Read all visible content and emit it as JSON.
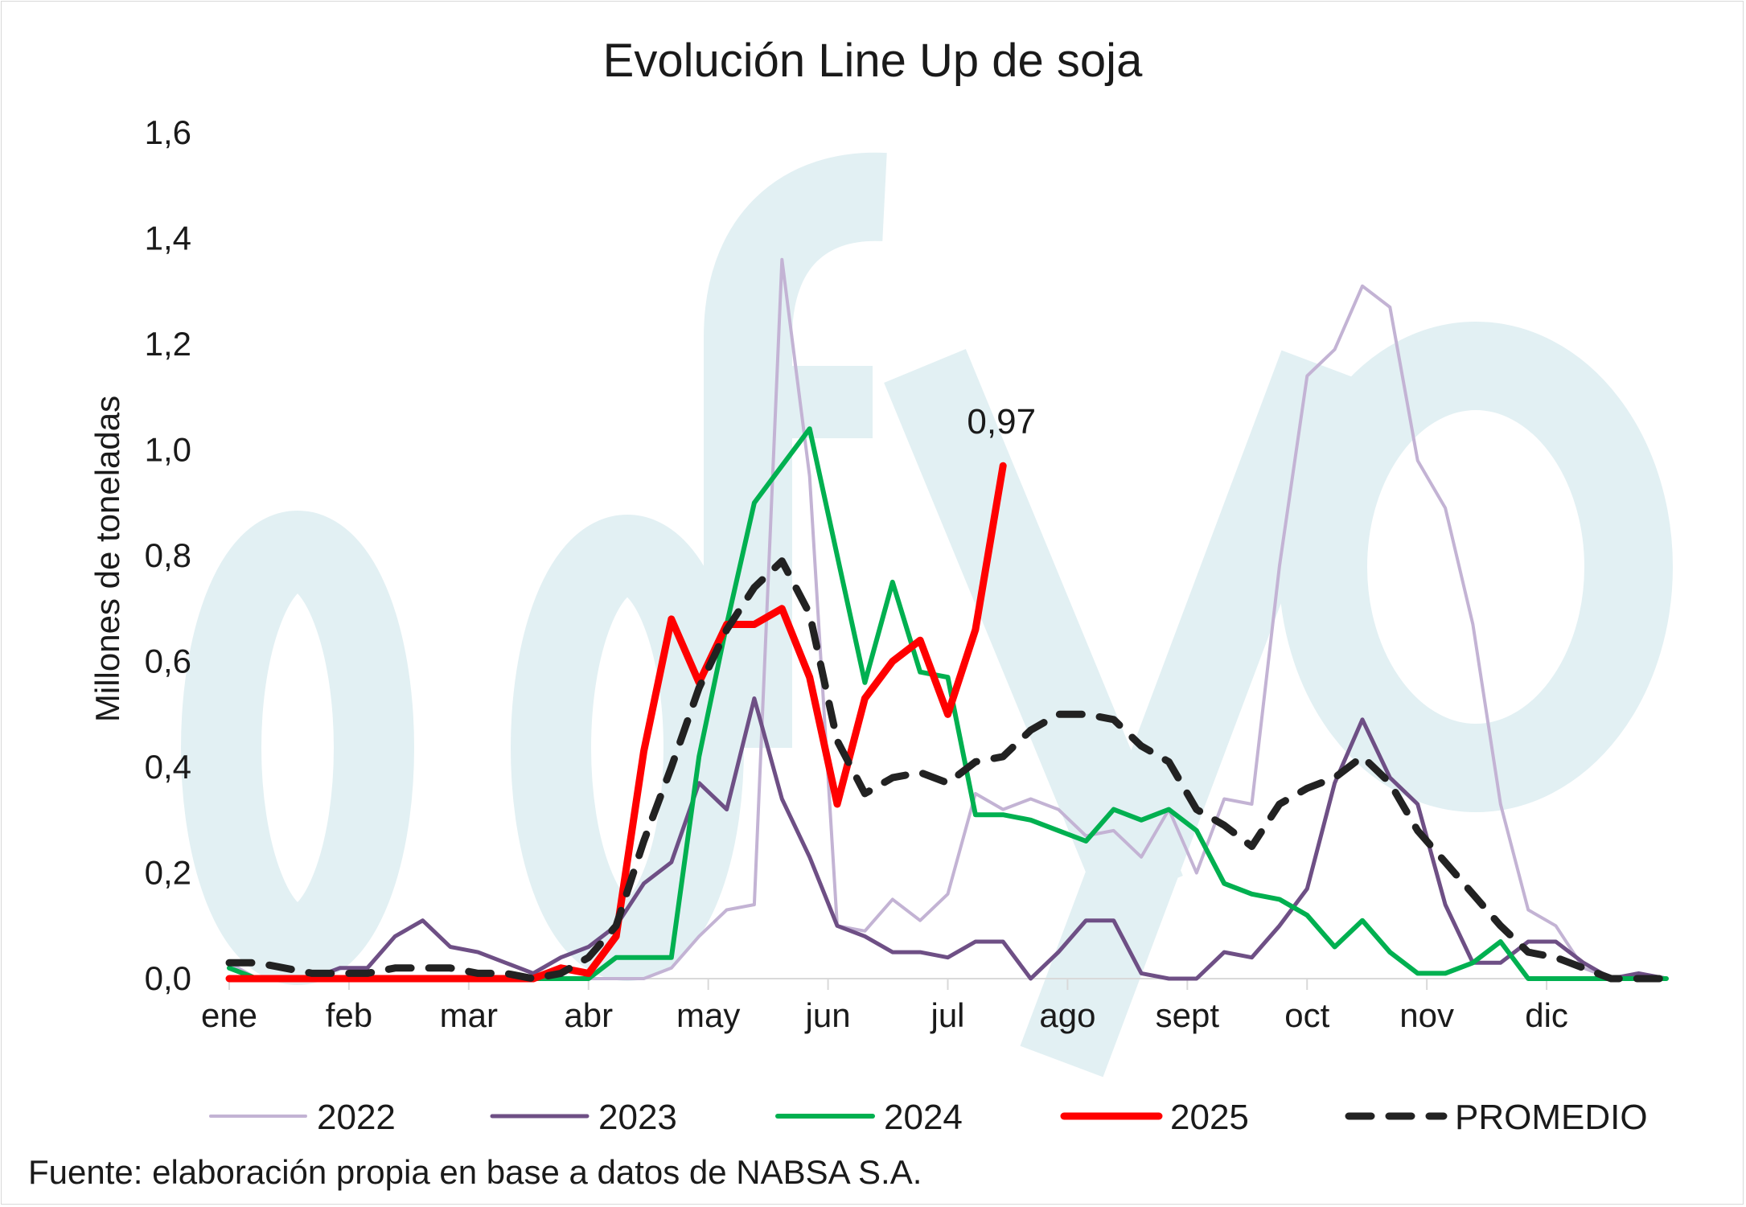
{
  "chart_data": {
    "type": "line",
    "title": "Evolución Line Up de soja",
    "ylabel": "Millones de toneladas",
    "xlabel": "",
    "ylim": [
      0,
      1.6
    ],
    "yticks": [
      "0,0",
      "0,2",
      "0,4",
      "0,6",
      "0,8",
      "1,0",
      "1,2",
      "1,4",
      "1,6"
    ],
    "ytick_values": [
      0,
      0.2,
      0.4,
      0.6,
      0.8,
      1.0,
      1.2,
      1.4,
      1.6
    ],
    "x_unit": "week",
    "xlim": [
      1,
      53
    ],
    "month_labels": [
      "ene",
      "feb",
      "mar",
      "abr",
      "may",
      "jun",
      "jul",
      "ago",
      "sept",
      "oct",
      "nov",
      "dic"
    ],
    "grid": false,
    "legend_position": "bottom",
    "annotation": {
      "text": "0,97",
      "series": "2025",
      "x": 29,
      "y": 0.97
    },
    "watermark": "ofyo",
    "series": [
      {
        "name": "2022",
        "color": "#c3b3d4",
        "width": 4,
        "dash": "solid",
        "x": [
          1,
          2,
          3,
          4,
          5,
          6,
          7,
          8,
          9,
          10,
          11,
          12,
          13,
          14,
          15,
          16,
          17,
          18,
          19,
          20,
          21,
          22,
          23,
          24,
          25,
          26,
          27,
          28,
          29,
          30,
          31,
          32,
          33,
          34,
          35,
          36,
          37,
          38,
          39,
          40,
          41,
          42,
          43,
          44,
          45,
          46,
          47,
          48,
          49,
          50,
          51,
          52,
          53
        ],
        "y": [
          0.03,
          0.0,
          0.0,
          0.0,
          0.0,
          0.0,
          0.0,
          0.0,
          0.0,
          0.0,
          0.0,
          0.0,
          0.0,
          0.0,
          0.0,
          0.0,
          0.02,
          0.08,
          0.13,
          0.14,
          1.36,
          0.95,
          0.1,
          0.09,
          0.15,
          0.11,
          0.16,
          0.35,
          0.32,
          0.34,
          0.32,
          0.27,
          0.28,
          0.23,
          0.32,
          0.2,
          0.34,
          0.33,
          0.78,
          1.14,
          1.19,
          1.31,
          1.27,
          0.98,
          0.89,
          0.67,
          0.33,
          0.13,
          0.1,
          0.02,
          0.0,
          0.0,
          0.0
        ]
      },
      {
        "name": "2023",
        "color": "#6e4f85",
        "width": 5,
        "dash": "solid",
        "x": [
          1,
          2,
          3,
          4,
          5,
          6,
          7,
          8,
          9,
          10,
          11,
          12,
          13,
          14,
          15,
          16,
          17,
          18,
          19,
          20,
          21,
          22,
          23,
          24,
          25,
          26,
          27,
          28,
          29,
          30,
          31,
          32,
          33,
          34,
          35,
          36,
          37,
          38,
          39,
          40,
          41,
          42,
          43,
          44,
          45,
          46,
          47,
          48,
          49,
          50,
          51,
          52,
          53
        ],
        "y": [
          0.0,
          0.0,
          0.0,
          0.0,
          0.02,
          0.02,
          0.08,
          0.11,
          0.06,
          0.05,
          0.03,
          0.01,
          0.04,
          0.06,
          0.1,
          0.18,
          0.22,
          0.37,
          0.32,
          0.53,
          0.34,
          0.23,
          0.1,
          0.08,
          0.05,
          0.05,
          0.04,
          0.07,
          0.07,
          0.0,
          0.05,
          0.11,
          0.11,
          0.01,
          0.0,
          0.0,
          0.05,
          0.04,
          0.1,
          0.17,
          0.37,
          0.49,
          0.38,
          0.33,
          0.14,
          0.03,
          0.03,
          0.07,
          0.07,
          0.03,
          0.0,
          0.01,
          0.0
        ]
      },
      {
        "name": "2024",
        "color": "#00b050",
        "width": 6,
        "dash": "solid",
        "x": [
          1,
          2,
          3,
          4,
          5,
          6,
          7,
          8,
          9,
          10,
          11,
          12,
          13,
          14,
          15,
          16,
          17,
          18,
          19,
          20,
          21,
          22,
          23,
          24,
          25,
          26,
          27,
          28,
          29,
          30,
          31,
          32,
          33,
          34,
          35,
          36,
          37,
          38,
          39,
          40,
          41,
          42,
          43,
          44,
          45,
          46,
          47,
          48,
          49,
          50,
          51,
          52,
          53
        ],
        "y": [
          0.02,
          0.0,
          0.0,
          0.0,
          0.0,
          0.0,
          0.0,
          0.0,
          0.0,
          0.0,
          0.0,
          0.0,
          0.0,
          0.0,
          0.04,
          0.04,
          0.04,
          0.42,
          0.67,
          0.9,
          0.97,
          1.04,
          0.8,
          0.56,
          0.75,
          0.58,
          0.57,
          0.31,
          0.31,
          0.3,
          0.28,
          0.26,
          0.32,
          0.3,
          0.32,
          0.28,
          0.18,
          0.16,
          0.15,
          0.12,
          0.06,
          0.11,
          0.05,
          0.01,
          0.01,
          0.03,
          0.07,
          0.0,
          0.0,
          0.0,
          0.0,
          0.0,
          0.0
        ]
      },
      {
        "name": "2025",
        "color": "#ff0000",
        "width": 9,
        "dash": "solid",
        "x": [
          1,
          2,
          3,
          4,
          5,
          6,
          7,
          8,
          9,
          10,
          11,
          12,
          13,
          14,
          15,
          16,
          17,
          18,
          19,
          20,
          21,
          22,
          23,
          24,
          25,
          26,
          27,
          28,
          29
        ],
        "y": [
          0.0,
          0.0,
          0.0,
          0.0,
          0.0,
          0.0,
          0.0,
          0.0,
          0.0,
          0.0,
          0.0,
          0.0,
          0.02,
          0.01,
          0.08,
          0.43,
          0.68,
          0.56,
          0.67,
          0.67,
          0.7,
          0.57,
          0.33,
          0.53,
          0.6,
          0.64,
          0.5,
          0.66,
          0.97
        ]
      },
      {
        "name": "PROMEDIO",
        "color": "#222222",
        "width": 9,
        "dash": "dashed",
        "x": [
          1,
          2,
          3,
          4,
          5,
          6,
          7,
          8,
          9,
          10,
          11,
          12,
          13,
          14,
          15,
          16,
          17,
          18,
          19,
          20,
          21,
          22,
          23,
          24,
          25,
          26,
          27,
          28,
          29,
          30,
          31,
          32,
          33,
          34,
          35,
          36,
          37,
          38,
          39,
          40,
          41,
          42,
          43,
          44,
          45,
          46,
          47,
          48,
          49,
          50,
          51,
          52,
          53
        ],
        "y": [
          0.03,
          0.03,
          0.02,
          0.01,
          0.01,
          0.01,
          0.02,
          0.02,
          0.02,
          0.01,
          0.01,
          0.0,
          0.01,
          0.04,
          0.1,
          0.26,
          0.4,
          0.55,
          0.66,
          0.74,
          0.79,
          0.69,
          0.45,
          0.35,
          0.38,
          0.39,
          0.37,
          0.41,
          0.42,
          0.47,
          0.5,
          0.5,
          0.49,
          0.44,
          0.41,
          0.32,
          0.29,
          0.25,
          0.33,
          0.36,
          0.38,
          0.42,
          0.37,
          0.28,
          0.22,
          0.16,
          0.1,
          0.05,
          0.04,
          0.02,
          0.0,
          0.0,
          0.0
        ]
      }
    ]
  },
  "source": "Fuente: elaboración propia en base a datos de NABSA S.A."
}
